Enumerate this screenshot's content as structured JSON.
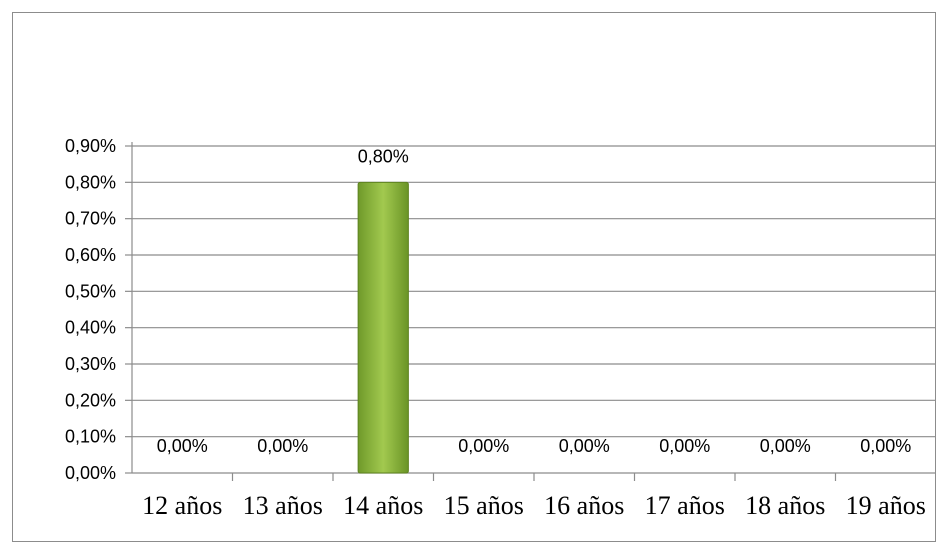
{
  "chart_data": {
    "type": "bar",
    "categories": [
      "12 años",
      "13 años",
      "14 años",
      "15 años",
      "16 años",
      "17 años",
      "18 años",
      "19 años"
    ],
    "values": [
      0.0,
      0.0,
      0.8,
      0.0,
      0.0,
      0.0,
      0.0,
      0.0
    ],
    "data_labels": [
      "0,00%",
      "0,00%",
      "0,80%",
      "0,00%",
      "0,00%",
      "0,00%",
      "0,00%",
      "0,00%"
    ],
    "ylim": [
      0,
      0.9
    ],
    "yticks": [
      0,
      0.1,
      0.2,
      0.3,
      0.4,
      0.5,
      0.6,
      0.7,
      0.8,
      0.9
    ],
    "ytick_labels": [
      "0,00%",
      "0,10%",
      "0,20%",
      "0,30%",
      "0,40%",
      "0,50%",
      "0,60%",
      "0,70%",
      "0,80%",
      "0,90%"
    ],
    "grid": true,
    "legend": "none",
    "bar_color": "#8cb43c",
    "title": "",
    "xlabel": "",
    "ylabel": ""
  }
}
